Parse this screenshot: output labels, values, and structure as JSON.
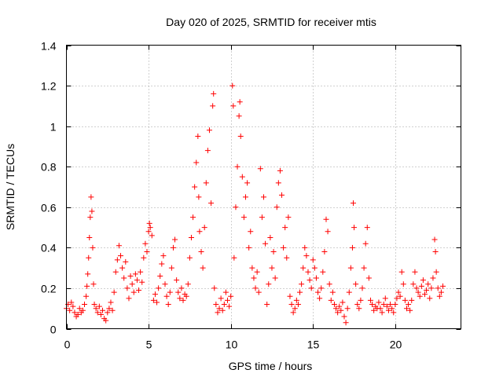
{
  "chart_data": {
    "type": "scatter",
    "title": "Day 020 of 2025, SRMTID for receiver mtis",
    "xlabel": "GPS time / hours",
    "ylabel": "SRMTID / TECUs",
    "xlim": [
      0,
      24
    ],
    "ylim": [
      0,
      1.4
    ],
    "xticks": [
      0,
      5,
      10,
      15,
      20
    ],
    "xtick_labels": [
      "0",
      "5",
      "10",
      "15",
      "20"
    ],
    "yticks": [
      0,
      0.2,
      0.4,
      0.6,
      0.8,
      1,
      1.2,
      1.4
    ],
    "ytick_labels": [
      "0",
      "0.2",
      "0.4",
      "0.6",
      "0.8",
      "1",
      "1.2",
      "1.4"
    ],
    "grid": true,
    "marker": "+",
    "color": "#ff0000",
    "series": [
      {
        "name": "SRMTID",
        "points": [
          [
            0.0,
            0.1
          ],
          [
            0.1,
            0.12
          ],
          [
            0.2,
            0.09
          ],
          [
            0.3,
            0.13
          ],
          [
            0.4,
            0.11
          ],
          [
            0.5,
            0.08
          ],
          [
            0.6,
            0.06
          ],
          [
            0.7,
            0.07
          ],
          [
            0.8,
            0.1
          ],
          [
            0.9,
            0.08
          ],
          [
            1.0,
            0.09
          ],
          [
            1.1,
            0.12
          ],
          [
            1.2,
            0.16
          ],
          [
            1.25,
            0.21
          ],
          [
            1.3,
            0.27
          ],
          [
            1.35,
            0.35
          ],
          [
            1.4,
            0.45
          ],
          [
            1.45,
            0.55
          ],
          [
            1.5,
            0.65
          ],
          [
            1.55,
            0.58
          ],
          [
            1.6,
            0.4
          ],
          [
            1.65,
            0.22
          ],
          [
            1.7,
            0.12
          ],
          [
            1.8,
            0.1
          ],
          [
            1.9,
            0.08
          ],
          [
            2.0,
            0.11
          ],
          [
            2.1,
            0.07
          ],
          [
            2.2,
            0.09
          ],
          [
            2.3,
            0.05
          ],
          [
            2.4,
            0.04
          ],
          [
            2.5,
            0.08
          ],
          [
            2.6,
            0.1
          ],
          [
            2.7,
            0.13
          ],
          [
            2.8,
            0.09
          ],
          [
            2.9,
            0.18
          ],
          [
            3.0,
            0.28
          ],
          [
            3.1,
            0.34
          ],
          [
            3.2,
            0.41
          ],
          [
            3.3,
            0.36
          ],
          [
            3.4,
            0.3
          ],
          [
            3.5,
            0.25
          ],
          [
            3.6,
            0.33
          ],
          [
            3.7,
            0.2
          ],
          [
            3.8,
            0.15
          ],
          [
            3.9,
            0.26
          ],
          [
            4.0,
            0.22
          ],
          [
            4.1,
            0.18
          ],
          [
            4.2,
            0.27
          ],
          [
            4.3,
            0.24
          ],
          [
            4.4,
            0.19
          ],
          [
            4.5,
            0.28
          ],
          [
            4.6,
            0.23
          ],
          [
            4.7,
            0.35
          ],
          [
            4.8,
            0.42
          ],
          [
            4.9,
            0.38
          ],
          [
            5.0,
            0.48
          ],
          [
            5.05,
            0.52
          ],
          [
            5.1,
            0.5
          ],
          [
            5.2,
            0.46
          ],
          [
            5.3,
            0.14
          ],
          [
            5.4,
            0.17
          ],
          [
            5.5,
            0.13
          ],
          [
            5.6,
            0.2
          ],
          [
            5.7,
            0.26
          ],
          [
            5.8,
            0.32
          ],
          [
            5.9,
            0.36
          ],
          [
            6.0,
            0.22
          ],
          [
            6.1,
            0.16
          ],
          [
            6.2,
            0.12
          ],
          [
            6.3,
            0.18
          ],
          [
            6.4,
            0.3
          ],
          [
            6.5,
            0.4
          ],
          [
            6.6,
            0.44
          ],
          [
            6.7,
            0.24
          ],
          [
            6.8,
            0.18
          ],
          [
            6.9,
            0.15
          ],
          [
            7.0,
            0.2
          ],
          [
            7.1,
            0.14
          ],
          [
            7.2,
            0.17
          ],
          [
            7.3,
            0.16
          ],
          [
            7.4,
            0.22
          ],
          [
            7.5,
            0.35
          ],
          [
            7.6,
            0.45
          ],
          [
            7.7,
            0.55
          ],
          [
            7.8,
            0.7
          ],
          [
            7.9,
            0.82
          ],
          [
            8.0,
            0.95
          ],
          [
            8.05,
            0.65
          ],
          [
            8.1,
            0.48
          ],
          [
            8.2,
            0.38
          ],
          [
            8.3,
            0.3
          ],
          [
            8.4,
            0.5
          ],
          [
            8.5,
            0.72
          ],
          [
            8.6,
            0.88
          ],
          [
            8.7,
            0.98
          ],
          [
            8.8,
            0.62
          ],
          [
            8.9,
            1.1
          ],
          [
            8.95,
            1.16
          ],
          [
            9.0,
            0.2
          ],
          [
            9.1,
            0.12
          ],
          [
            9.2,
            0.08
          ],
          [
            9.3,
            0.1
          ],
          [
            9.4,
            0.15
          ],
          [
            9.5,
            0.09
          ],
          [
            9.6,
            0.12
          ],
          [
            9.7,
            0.18
          ],
          [
            9.8,
            0.14
          ],
          [
            9.9,
            0.11
          ],
          [
            10.0,
            0.16
          ],
          [
            10.1,
            1.2
          ],
          [
            10.15,
            1.1
          ],
          [
            10.2,
            0.35
          ],
          [
            10.3,
            0.6
          ],
          [
            10.4,
            0.8
          ],
          [
            10.5,
            1.05
          ],
          [
            10.55,
            1.12
          ],
          [
            10.6,
            0.95
          ],
          [
            10.7,
            0.75
          ],
          [
            10.8,
            0.55
          ],
          [
            10.9,
            0.65
          ],
          [
            11.0,
            0.72
          ],
          [
            11.1,
            0.4
          ],
          [
            11.2,
            0.48
          ],
          [
            11.3,
            0.3
          ],
          [
            11.4,
            0.25
          ],
          [
            11.5,
            0.2
          ],
          [
            11.6,
            0.28
          ],
          [
            11.7,
            0.18
          ],
          [
            11.8,
            0.79
          ],
          [
            11.9,
            0.55
          ],
          [
            12.0,
            0.65
          ],
          [
            12.1,
            0.42
          ],
          [
            12.2,
            0.12
          ],
          [
            12.3,
            0.22
          ],
          [
            12.4,
            0.45
          ],
          [
            12.5,
            0.3
          ],
          [
            12.6,
            0.38
          ],
          [
            12.7,
            0.25
          ],
          [
            12.8,
            0.6
          ],
          [
            12.9,
            0.72
          ],
          [
            13.0,
            0.78
          ],
          [
            13.1,
            0.66
          ],
          [
            13.2,
            0.4
          ],
          [
            13.3,
            0.5
          ],
          [
            13.4,
            0.35
          ],
          [
            13.5,
            0.55
          ],
          [
            13.6,
            0.16
          ],
          [
            13.7,
            0.12
          ],
          [
            13.8,
            0.08
          ],
          [
            13.9,
            0.1
          ],
          [
            14.0,
            0.14
          ],
          [
            14.1,
            0.12
          ],
          [
            14.2,
            0.18
          ],
          [
            14.3,
            0.22
          ],
          [
            14.4,
            0.3
          ],
          [
            14.5,
            0.4
          ],
          [
            14.6,
            0.36
          ],
          [
            14.7,
            0.28
          ],
          [
            14.8,
            0.24
          ],
          [
            14.9,
            0.2
          ],
          [
            15.0,
            0.34
          ],
          [
            15.1,
            0.3
          ],
          [
            15.2,
            0.25
          ],
          [
            15.3,
            0.18
          ],
          [
            15.4,
            0.15
          ],
          [
            15.5,
            0.2
          ],
          [
            15.6,
            0.28
          ],
          [
            15.7,
            0.38
          ],
          [
            15.8,
            0.54
          ],
          [
            15.9,
            0.48
          ],
          [
            16.0,
            0.22
          ],
          [
            16.1,
            0.14
          ],
          [
            16.2,
            0.18
          ],
          [
            16.3,
            0.12
          ],
          [
            16.4,
            0.1
          ],
          [
            16.5,
            0.08
          ],
          [
            16.6,
            0.11
          ],
          [
            16.7,
            0.09
          ],
          [
            16.8,
            0.13
          ],
          [
            16.9,
            0.06
          ],
          [
            17.0,
            0.03
          ],
          [
            17.1,
            0.1
          ],
          [
            17.2,
            0.18
          ],
          [
            17.3,
            0.3
          ],
          [
            17.4,
            0.4
          ],
          [
            17.45,
            0.62
          ],
          [
            17.5,
            0.5
          ],
          [
            17.6,
            0.22
          ],
          [
            17.7,
            0.12
          ],
          [
            17.8,
            0.1
          ],
          [
            17.9,
            0.14
          ],
          [
            18.0,
            0.2
          ],
          [
            18.1,
            0.3
          ],
          [
            18.2,
            0.42
          ],
          [
            18.3,
            0.5
          ],
          [
            18.4,
            0.25
          ],
          [
            18.5,
            0.14
          ],
          [
            18.6,
            0.12
          ],
          [
            18.7,
            0.09
          ],
          [
            18.8,
            0.11
          ],
          [
            18.9,
            0.1
          ],
          [
            19.0,
            0.13
          ],
          [
            19.1,
            0.1
          ],
          [
            19.2,
            0.08
          ],
          [
            19.3,
            0.12
          ],
          [
            19.4,
            0.15
          ],
          [
            19.5,
            0.11
          ],
          [
            19.6,
            0.09
          ],
          [
            19.7,
            0.12
          ],
          [
            19.8,
            0.1
          ],
          [
            19.9,
            0.08
          ],
          [
            20.0,
            0.12
          ],
          [
            20.1,
            0.15
          ],
          [
            20.2,
            0.18
          ],
          [
            20.3,
            0.16
          ],
          [
            20.4,
            0.28
          ],
          [
            20.5,
            0.22
          ],
          [
            20.6,
            0.14
          ],
          [
            20.7,
            0.1
          ],
          [
            20.8,
            0.12
          ],
          [
            20.9,
            0.09
          ],
          [
            21.0,
            0.14
          ],
          [
            21.1,
            0.22
          ],
          [
            21.2,
            0.28
          ],
          [
            21.3,
            0.2
          ],
          [
            21.4,
            0.18
          ],
          [
            21.5,
            0.16
          ],
          [
            21.6,
            0.21
          ],
          [
            21.7,
            0.24
          ],
          [
            21.8,
            0.17
          ],
          [
            21.9,
            0.19
          ],
          [
            22.0,
            0.22
          ],
          [
            22.1,
            0.15
          ],
          [
            22.2,
            0.2
          ],
          [
            22.3,
            0.25
          ],
          [
            22.4,
            0.44
          ],
          [
            22.45,
            0.38
          ],
          [
            22.5,
            0.28
          ],
          [
            22.6,
            0.2
          ],
          [
            22.7,
            0.16
          ],
          [
            22.8,
            0.18
          ],
          [
            22.9,
            0.21
          ]
        ]
      }
    ]
  }
}
